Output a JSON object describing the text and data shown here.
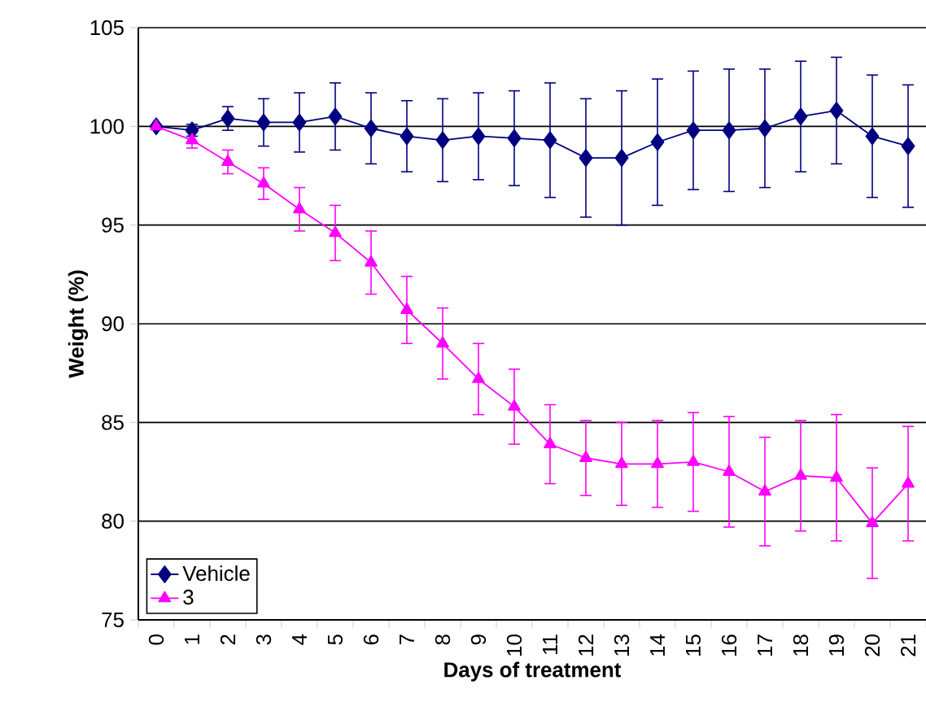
{
  "chart_data": {
    "type": "line",
    "xlabel": "Days of treatment",
    "ylabel": "Weight (%)",
    "categories": [
      "0",
      "1",
      "2",
      "3",
      "4",
      "5",
      "6",
      "7",
      "8",
      "9",
      "10",
      "11",
      "12",
      "13",
      "14",
      "15",
      "16",
      "17",
      "18",
      "19",
      "20",
      "21"
    ],
    "ylim": [
      75,
      105
    ],
    "yticks": [
      75,
      80,
      85,
      90,
      95,
      100,
      105
    ],
    "grid": "y",
    "legend": "bottom left",
    "series": [
      {
        "name": "Vehicle",
        "color": "#000080",
        "marker": "diamond",
        "values": [
          100,
          99.8,
          100.4,
          100.2,
          100.2,
          100.5,
          99.9,
          99.5,
          99.3,
          99.5,
          99.4,
          99.3,
          98.4,
          98.4,
          99.2,
          99.8,
          99.8,
          99.9,
          100.5,
          100.8,
          99.5,
          99.0
        ],
        "errors": [
          null,
          0.3,
          0.6,
          1.2,
          1.5,
          1.7,
          1.8,
          1.8,
          2.1,
          2.2,
          2.4,
          2.9,
          3.0,
          3.4,
          3.2,
          3.0,
          3.1,
          3.0,
          2.8,
          2.7,
          3.1,
          3.1
        ]
      },
      {
        "name": "3",
        "color": "#ff00ff",
        "marker": "triangle",
        "values": [
          100,
          99.3,
          98.2,
          97.1,
          95.8,
          94.6,
          93.1,
          90.7,
          89.0,
          87.2,
          85.8,
          83.9,
          83.2,
          82.9,
          82.9,
          83.0,
          82.5,
          81.5,
          82.3,
          82.2,
          79.9,
          81.9
        ],
        "errors": [
          null,
          0.4,
          0.6,
          0.8,
          1.1,
          1.4,
          1.6,
          1.7,
          1.8,
          1.8,
          1.9,
          2.0,
          1.9,
          2.1,
          2.2,
          2.5,
          2.8,
          2.75,
          2.8,
          3.2,
          2.8,
          2.9
        ]
      }
    ]
  }
}
